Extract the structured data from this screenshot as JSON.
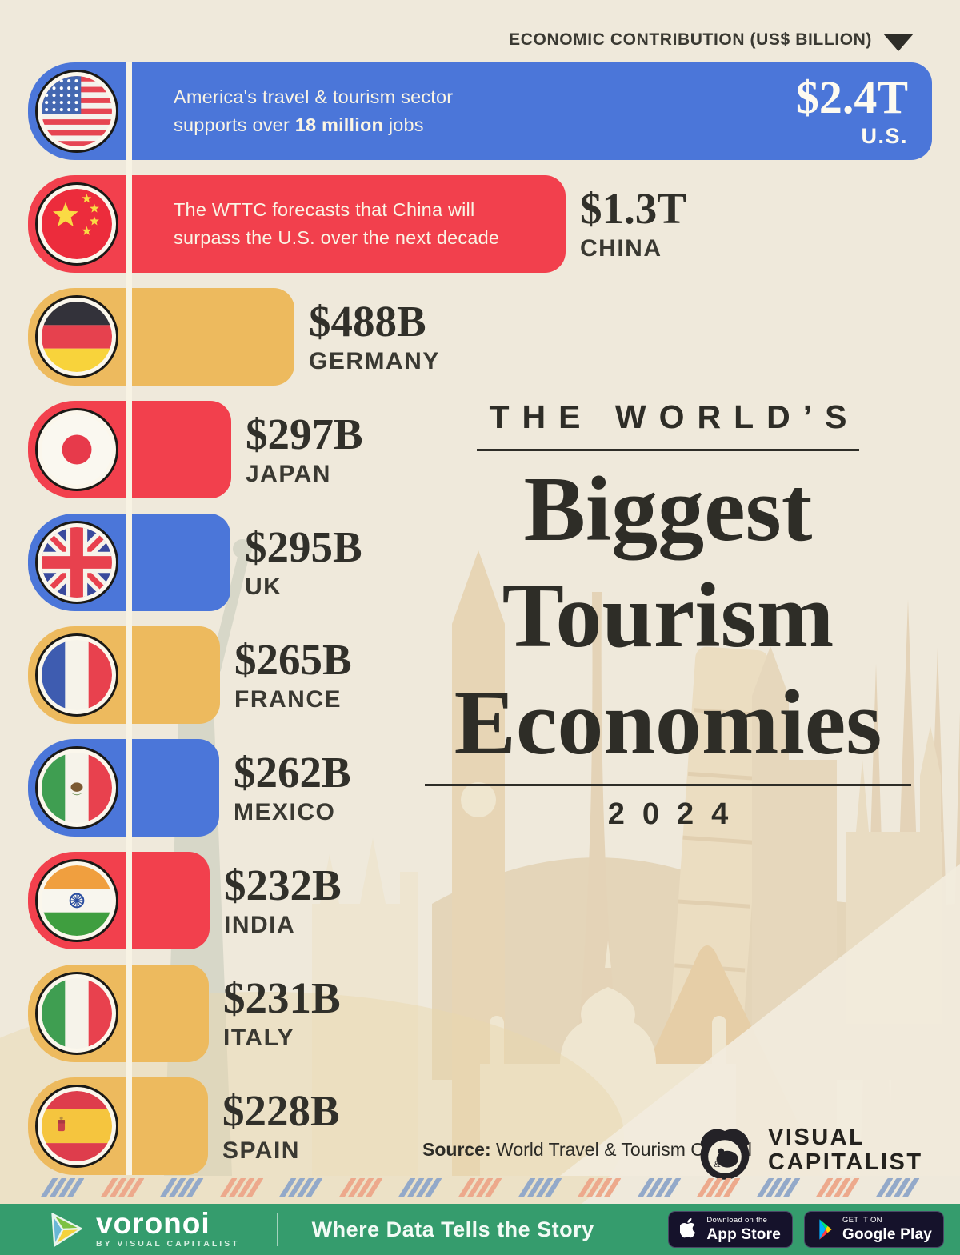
{
  "header": {
    "label": "ECONOMIC CONTRIBUTION (US$ BILLION)"
  },
  "title": {
    "kicker": "THE WORLD’S",
    "lines": [
      "Biggest",
      "Tourism",
      "Economies"
    ],
    "year": "2024"
  },
  "colors": {
    "blue": "#4b76d9",
    "red": "#f2404d",
    "yellow": "#edba5e",
    "ink": "#35342d",
    "cream": "#efe9db",
    "footer_green": "#359c6d",
    "stripe_blue": "#93a9c9",
    "stripe_salmon": "#eda98c"
  },
  "chart_data": {
    "type": "bar",
    "orientation": "horizontal",
    "title": "The World's Biggest Tourism Economies 2024",
    "unit": "US$ billion",
    "xlim": [
      0,
      2400
    ],
    "grid": false,
    "legend": "none",
    "categories": [
      "U.S.",
      "China",
      "Germany",
      "Japan",
      "UK",
      "France",
      "Mexico",
      "India",
      "Italy",
      "Spain"
    ],
    "values": [
      2400,
      1300,
      488,
      297,
      295,
      265,
      262,
      232,
      231,
      228
    ],
    "value_labels": [
      "$2.4T",
      "$1.3T",
      "$488B",
      "$297B",
      "$295B",
      "$265B",
      "$262B",
      "$232B",
      "$231B",
      "$228B"
    ],
    "bar_colors": [
      "#4b76d9",
      "#f2404d",
      "#edba5e",
      "#f2404d",
      "#4b76d9",
      "#edba5e",
      "#4b76d9",
      "#f2404d",
      "#edba5e",
      "#edba5e"
    ],
    "annotations": [
      {
        "category": "U.S.",
        "text": "America's travel & tourism sector supports over 18 million jobs"
      },
      {
        "category": "China",
        "text": "The WTTC forecasts that China will surpass the U.S. over the next decade"
      }
    ],
    "source": "World Travel & Tourism Council"
  },
  "rows": [
    {
      "id": "us",
      "country": "U.S.",
      "flag": "us",
      "flag_icon": "us-flag-icon",
      "value": 2400,
      "value_label": "$2.4T",
      "color_key": "blue",
      "label_inside": true,
      "annotation": [
        [
          {
            "t": "America's travel & tourism sector"
          }
        ],
        [
          {
            "t": "supports over "
          },
          {
            "t": "18 million",
            "b": true
          },
          {
            "t": " jobs"
          }
        ]
      ]
    },
    {
      "id": "china",
      "country": "CHINA",
      "flag": "cn",
      "flag_icon": "china-flag-icon",
      "value": 1300,
      "value_label": "$1.3T",
      "color_key": "red",
      "label_inside": false,
      "annotation": [
        [
          {
            "t": "The WTTC forecasts that China will"
          }
        ],
        [
          {
            "t": "surpass the U.S. over the next decade"
          }
        ]
      ]
    },
    {
      "id": "germany",
      "country": "GERMANY",
      "flag": "de",
      "flag_icon": "germany-flag-icon",
      "value": 488,
      "value_label": "$488B",
      "color_key": "yellow",
      "label_inside": false
    },
    {
      "id": "japan",
      "country": "JAPAN",
      "flag": "jp",
      "flag_icon": "japan-flag-icon",
      "value": 297,
      "value_label": "$297B",
      "color_key": "red",
      "label_inside": false
    },
    {
      "id": "uk",
      "country": "UK",
      "flag": "uk",
      "flag_icon": "uk-flag-icon",
      "value": 295,
      "value_label": "$295B",
      "color_key": "blue",
      "label_inside": false
    },
    {
      "id": "france",
      "country": "FRANCE",
      "flag": "fr",
      "flag_icon": "france-flag-icon",
      "value": 265,
      "value_label": "$265B",
      "color_key": "yellow",
      "label_inside": false
    },
    {
      "id": "mexico",
      "country": "MEXICO",
      "flag": "mx",
      "flag_icon": "mexico-flag-icon",
      "value": 262,
      "value_label": "$262B",
      "color_key": "blue",
      "label_inside": false
    },
    {
      "id": "india",
      "country": "INDIA",
      "flag": "in",
      "flag_icon": "india-flag-icon",
      "value": 232,
      "value_label": "$232B",
      "color_key": "red",
      "label_inside": false
    },
    {
      "id": "italy",
      "country": "ITALY",
      "flag": "it",
      "flag_icon": "italy-flag-icon",
      "value": 231,
      "value_label": "$231B",
      "color_key": "yellow",
      "label_inside": false
    },
    {
      "id": "spain",
      "country": "SPAIN",
      "flag": "es",
      "flag_icon": "spain-flag-icon",
      "value": 228,
      "value_label": "$228B",
      "color_key": "yellow",
      "label_inside": false
    }
  ],
  "source": {
    "prefix": "Source:",
    "text": " World Travel & Tourism Council"
  },
  "vc_logo": {
    "line1": "VISUAL",
    "line2": "CAPITALIST"
  },
  "footer": {
    "brand": "voronoi",
    "brand_sub": "BY VISUAL CAPITALIST",
    "tagline": "Where Data Tells the Story",
    "appstore": {
      "small": "Download on the",
      "big": "App Store"
    },
    "gplay": {
      "small": "GET IT ON",
      "big": "Google Play"
    }
  }
}
